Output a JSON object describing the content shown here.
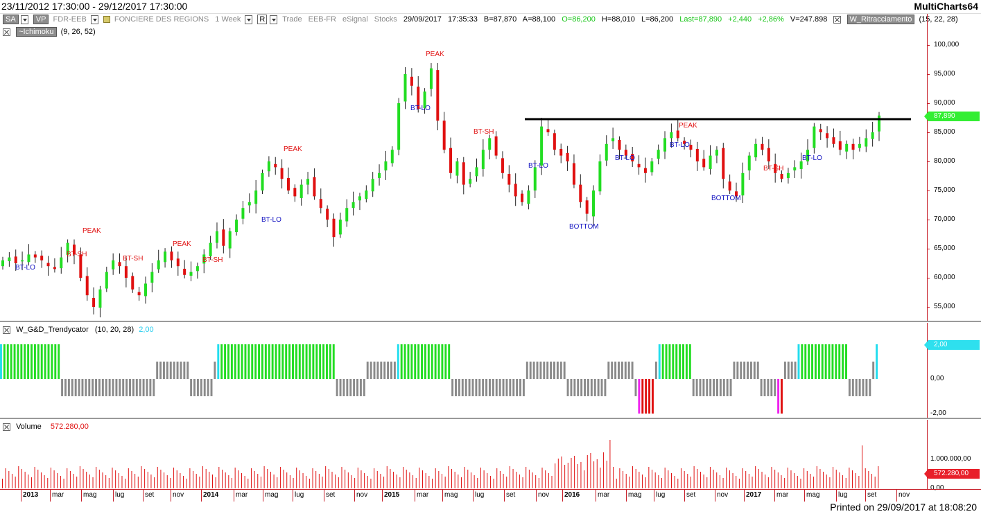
{
  "titlebar": {
    "date_range": "23/11/2012 17:30:00 - 29/12/2017 17:30:00",
    "app_name": "MultiCharts64"
  },
  "symbol_bar": {
    "sa_chip": "SA",
    "vp_chip": "VP",
    "symbol": "FDR-EEB",
    "name": "FONCIERE DES REGIONS",
    "resolution": "1 Week",
    "r_button": "R",
    "feed": "Trade",
    "exchange": "EEB-FR",
    "source": "eSignal",
    "category": "Stocks",
    "date": "29/09/2017",
    "time": "17:35:33",
    "bid": "B=87,870",
    "ask": "A=88,100",
    "open": "O=86,200",
    "high": "H=88,010",
    "low": "L=86,200",
    "last": "Last=87,890",
    "change": "+2,440",
    "change_pct": "+2,86%",
    "volume": "V=247.898",
    "study2_name": "W_Ritracciamento",
    "study2_params": "(15, 22, 28)"
  },
  "main_pane": {
    "study_name": "~Ichimoku",
    "study_params": "(9, 26, 52)",
    "price_axis": [
      "100,000",
      "95,000",
      "90,000",
      "85,000",
      "80,000",
      "75,000",
      "70,000",
      "65,000",
      "60,000",
      "55,000"
    ],
    "last_price_tag": "87,890",
    "annotations": [
      {
        "text": "BT-LO",
        "color": "blue"
      },
      {
        "text": "BT-SH",
        "color": "red"
      },
      {
        "text": "PEAK",
        "color": "red"
      },
      {
        "text": "BT-SH",
        "color": "red"
      },
      {
        "text": "PEAK",
        "color": "red"
      },
      {
        "text": "BT-SH",
        "color": "red"
      },
      {
        "text": "BT-LO",
        "color": "blue"
      },
      {
        "text": "PEAK",
        "color": "red"
      },
      {
        "text": "PEAK",
        "color": "red"
      },
      {
        "text": "BT-LO",
        "color": "blue"
      },
      {
        "text": "BT-SH",
        "color": "red"
      },
      {
        "text": "BT-LO",
        "color": "blue"
      },
      {
        "text": "BOTTOM",
        "color": "blue"
      },
      {
        "text": "BT-LO",
        "color": "blue"
      },
      {
        "text": "PEAK",
        "color": "red"
      },
      {
        "text": "BT-LO",
        "color": "blue"
      },
      {
        "text": "BOTTOM",
        "color": "blue"
      },
      {
        "text": "BT-SH",
        "color": "red"
      },
      {
        "text": "BT-LO",
        "color": "blue"
      }
    ]
  },
  "trend_pane": {
    "study_name": "W_G&D_Trendycator",
    "study_params": "(10, 20, 28)",
    "value": "2,00",
    "axis": [
      "2,00",
      "0,00",
      "-2,00"
    ]
  },
  "volume_pane": {
    "study_name": "Volume",
    "value": "572.280,00",
    "axis": [
      "1.000.000,00",
      "0,00"
    ]
  },
  "time_axis": [
    "2013",
    "mar",
    "mag",
    "lug",
    "set",
    "nov",
    "2014",
    "mar",
    "mag",
    "lug",
    "set",
    "nov",
    "2015",
    "mar",
    "mag",
    "lug",
    "set",
    "nov",
    "2016",
    "mar",
    "mag",
    "lug",
    "set",
    "nov",
    "2017",
    "mar",
    "mag",
    "lug",
    "set",
    "nov"
  ],
  "footer": "Printed on 29/09/2017 at 18:08:20",
  "colors": {
    "up": "#22dd22",
    "down": "#e01010",
    "neutral": "#8a8a8a",
    "cyan": "#22ddee",
    "magenta": "#ee22ee",
    "axis": "#c8202a"
  },
  "chart_data": {
    "type": "candlestick",
    "weekly_close": [
      63,
      63.5,
      62.5,
      63,
      64,
      63.5,
      63,
      62,
      61.5,
      63.5,
      66,
      64,
      60,
      57,
      55,
      58,
      61,
      63,
      62,
      60,
      58,
      57,
      59,
      61,
      63,
      64.5,
      63,
      62,
      60.5,
      61,
      62,
      64,
      66,
      68,
      65.5,
      68,
      70,
      72,
      73,
      75,
      78,
      80,
      79,
      77,
      75,
      74,
      76,
      77,
      74,
      72,
      70,
      67,
      70,
      72,
      73,
      74,
      75,
      77,
      78,
      80,
      82,
      90,
      95,
      93,
      89,
      92,
      96,
      87,
      82,
      78,
      80,
      76,
      77,
      79,
      82,
      84,
      81,
      78,
      76,
      74,
      73,
      75,
      79,
      86,
      85,
      82,
      81,
      80,
      76,
      73,
      71,
      75,
      80,
      83,
      84,
      82,
      81,
      80,
      79,
      78,
      80,
      82,
      84,
      85,
      84,
      83,
      82,
      80,
      79,
      81,
      82,
      77,
      75,
      74,
      78,
      81,
      83,
      82,
      80,
      78,
      77,
      78,
      79,
      80,
      82,
      86,
      85,
      84,
      83,
      82,
      83,
      82,
      83,
      84,
      85,
      87.89
    ],
    "price_range": [
      53,
      103
    ],
    "trend_levels": [
      2,
      2,
      2,
      2,
      2,
      2,
      2,
      2,
      2,
      2,
      2,
      2,
      2,
      2,
      2,
      2,
      2,
      2,
      -1,
      -1,
      -1,
      -1,
      -1,
      -1,
      -1,
      -1,
      -1,
      -1,
      -1,
      -1,
      -1,
      -1,
      -1,
      -1,
      -1,
      -1,
      -1,
      -1,
      -1,
      -1,
      -1,
      -1,
      -1,
      -1,
      -1,
      -1,
      1,
      1,
      1,
      1,
      1,
      1,
      1,
      1,
      1,
      1,
      -1,
      -1,
      -1,
      -1,
      -1,
      -1,
      -1,
      1,
      2,
      2,
      2,
      2,
      2,
      2,
      2,
      2,
      2,
      2,
      2,
      2,
      2,
      2,
      2,
      2,
      2,
      2,
      2,
      2,
      2,
      2,
      2,
      2,
      2,
      2,
      2,
      2,
      2,
      2,
      2,
      2,
      2,
      2,
      2,
      -1,
      -1,
      -1,
      -1,
      -1,
      -1,
      -1,
      -1,
      -1,
      1,
      1,
      1,
      1,
      1,
      1,
      1,
      1,
      1,
      2,
      2,
      2,
      2,
      2,
      2,
      2,
      2,
      2,
      2,
      2,
      2,
      2,
      2,
      2,
      2,
      -1,
      -1,
      -1,
      -1,
      -1,
      -1,
      -1,
      -1,
      -1,
      -1,
      -1,
      -1,
      -1,
      -1,
      -1,
      -1,
      -1,
      -1,
      -1,
      -1,
      -1,
      -1,
      1,
      1,
      1,
      1,
      1,
      1,
      1,
      1,
      1,
      1,
      1,
      1,
      -1,
      -1,
      -1,
      -1,
      -1,
      -1,
      -1,
      -1,
      -1,
      -1,
      -1,
      -1,
      1,
      1,
      1,
      1,
      1,
      1,
      1,
      1,
      -1,
      -2,
      -2,
      -2,
      -2,
      -2,
      1,
      2,
      2,
      2,
      2,
      2,
      2,
      2,
      2,
      2,
      2,
      -1,
      -1,
      -1,
      -1,
      -1,
      -1,
      -1,
      -1,
      -1,
      -1,
      -1,
      -1,
      1,
      1,
      1,
      1,
      1,
      1,
      1,
      1,
      -1,
      -1,
      -1,
      -1,
      -1,
      -2,
      -2,
      1,
      1,
      1,
      1,
      2,
      2,
      2,
      2,
      2,
      2,
      2,
      2,
      2,
      2,
      2,
      2,
      2,
      2,
      2,
      -1,
      -1,
      -1,
      -1,
      -1,
      -1,
      -1,
      1,
      2
    ]
  }
}
